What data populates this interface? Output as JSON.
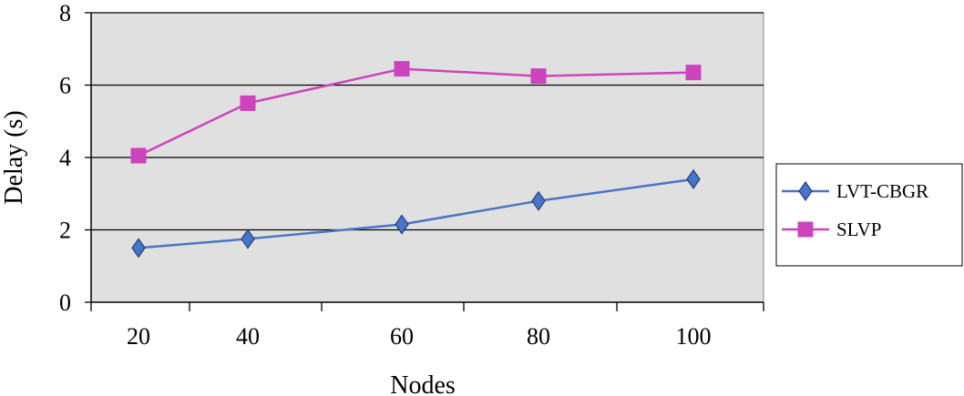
{
  "chart_data": {
    "type": "line",
    "categories": [
      "20",
      "40",
      "60",
      "80",
      "100"
    ],
    "series": [
      {
        "name": "LVT-CBGR",
        "values": [
          1.5,
          1.75,
          2.15,
          2.8,
          3.4
        ],
        "color": "#4a74c4",
        "marker": "diamond"
      },
      {
        "name": "SLVP",
        "values": [
          4.05,
          5.5,
          6.45,
          6.25,
          6.35
        ],
        "color": "#cc44bb",
        "marker": "square"
      }
    ],
    "title": "",
    "xlabel": "Nodes",
    "ylabel": "Delay (s)",
    "ylim": [
      0,
      8
    ],
    "yticks": [
      "0",
      "2",
      "4",
      "6",
      "8"
    ],
    "grid": "horizontal",
    "plot_background": "#e0e0e0",
    "legend_position": "right"
  }
}
